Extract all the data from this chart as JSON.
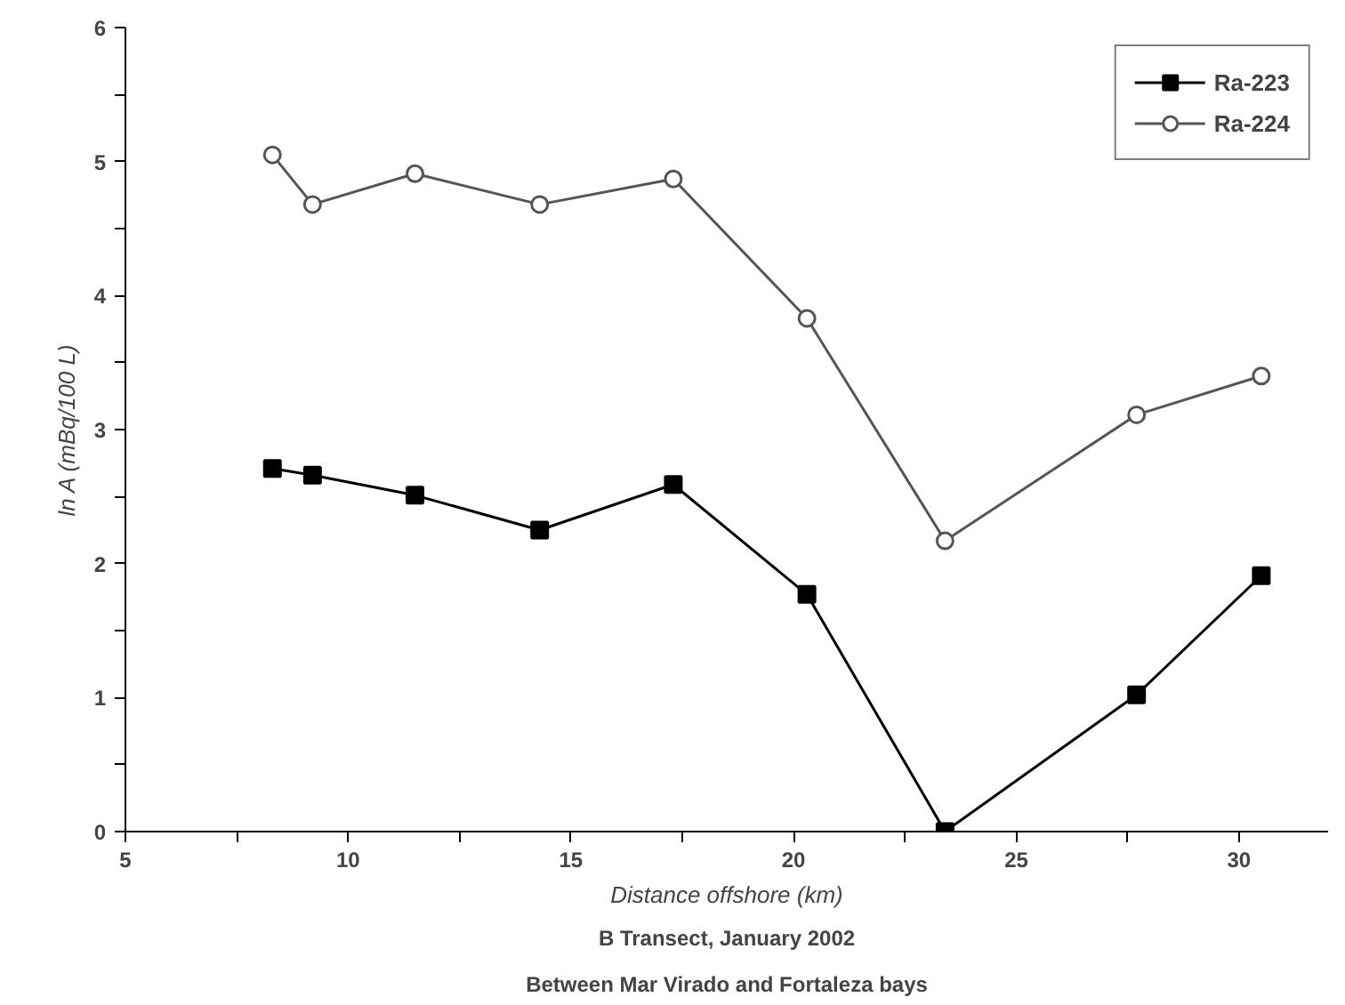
{
  "chart_data": {
    "type": "line",
    "xlabel": "Distance offshore (km)",
    "ylabel": "ln A (mBq/100 L)",
    "annotations": [
      "B Transect, January 2002",
      "Between Mar Virado and Fortaleza bays"
    ],
    "x": [
      8.3,
      9.2,
      11.5,
      14.3,
      17.3,
      20.3,
      23.4,
      27.7,
      30.5
    ],
    "series": [
      {
        "name": "Ra-223",
        "color": "#000000",
        "marker": "square",
        "values": [
          2.71,
          2.66,
          2.51,
          2.25,
          2.59,
          1.77,
          0.0,
          1.02,
          1.91
        ]
      },
      {
        "name": "Ra-224",
        "color": "#555555",
        "marker": "circle",
        "values": [
          5.05,
          4.68,
          4.91,
          4.68,
          4.87,
          3.83,
          2.17,
          3.11,
          3.4
        ]
      }
    ],
    "xlim": [
      5,
      32
    ],
    "ylim": [
      0,
      6
    ],
    "xticks": [
      5,
      {
        "value": 7.5,
        "label": null
      },
      10,
      {
        "value": 12.5,
        "label": null
      },
      15,
      {
        "value": 17.5,
        "label": null
      },
      20,
      {
        "value": 22.5,
        "label": null
      },
      25,
      {
        "value": 27.5,
        "label": null
      },
      30
    ],
    "yticks": [
      0,
      {
        "value": 0.5,
        "label": null
      },
      1,
      {
        "value": 1.5,
        "label": null
      },
      2,
      {
        "value": 2.5,
        "label": null
      },
      3,
      {
        "value": 3.5,
        "label": null
      },
      4,
      {
        "value": 4.5,
        "label": null
      },
      5,
      {
        "value": 5.5,
        "label": null
      },
      6
    ],
    "grid": false,
    "legend": "top right"
  }
}
